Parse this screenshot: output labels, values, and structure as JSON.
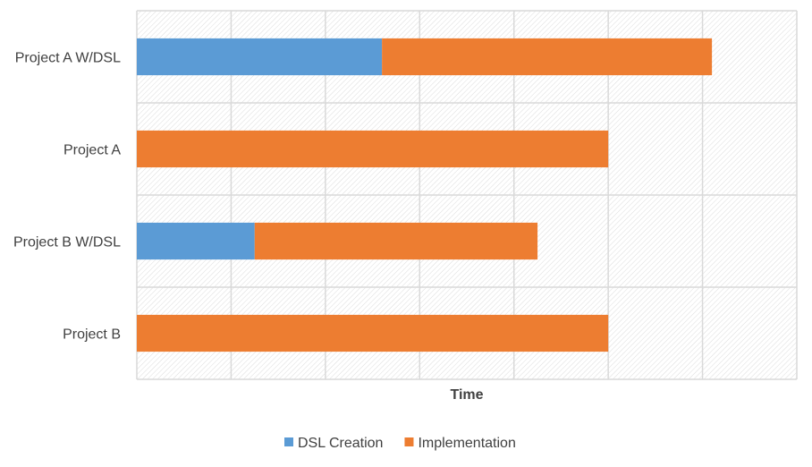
{
  "chart_data": {
    "type": "bar",
    "orientation": "horizontal",
    "stacked": true,
    "categories": [
      "Project A W/DSL",
      "Project A",
      "Project B W/DSL",
      "Project B"
    ],
    "series": [
      {
        "name": "DSL Creation",
        "color": "#5B9BD5",
        "values": [
          2.6,
          0,
          1.25,
          0
        ]
      },
      {
        "name": "Implementation",
        "color": "#ED7D31",
        "values": [
          3.5,
          5.0,
          3.0,
          5.0
        ]
      }
    ],
    "title": "",
    "xlabel": "Time",
    "ylabel": "",
    "xlim": [
      0,
      7
    ],
    "x_tick_labels_shown": false,
    "grid": true,
    "legend_position": "bottom"
  }
}
